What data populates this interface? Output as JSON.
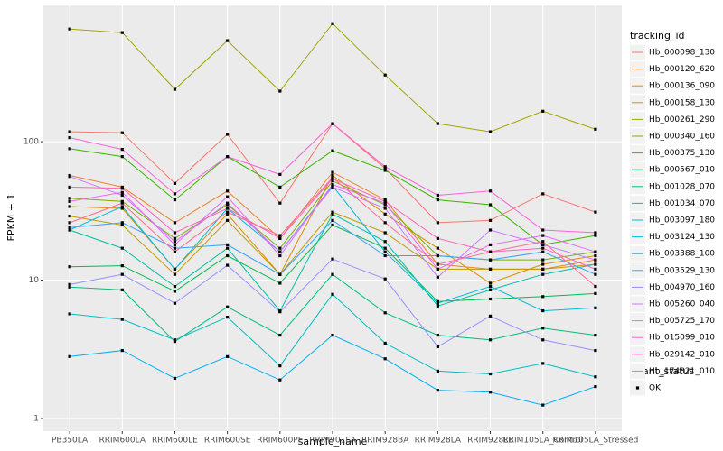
{
  "chart_data": {
    "type": "line",
    "x_label": "sample_name",
    "y_label": "FPKM + 1",
    "log_y": true,
    "grid": true,
    "legend_title": "tracking_id",
    "shape_legend": {
      "title": "quant_status",
      "labels": [
        "OK"
      ]
    },
    "point_color": "#000000",
    "panel_color": "#EBEBEB",
    "categories": [
      "PB350LA",
      "RRIM600LA",
      "RRIM600LE",
      "RRIM600SE",
      "RRIM600PE",
      "RRIM901LA",
      "RRIM928BA",
      "RRIM928LA",
      "RRIM928LE",
      "RRIM105LA_Control",
      "RRIM105LA_Stressed"
    ],
    "ylim": [
      0.81,
      980
    ],
    "yticks": [
      1,
      10,
      100
    ],
    "series": [
      {
        "name": "Hb_000098_130",
        "color": "#F8766D",
        "values": [
          118,
          116,
          50,
          113,
          36,
          135,
          64,
          26,
          27,
          42,
          31
        ]
      },
      {
        "name": "Hb_000120_620",
        "color": "#EA8331",
        "values": [
          57,
          47,
          26,
          44,
          20,
          60,
          38,
          13,
          12,
          12,
          14
        ]
      },
      {
        "name": "Hb_000136_090",
        "color": "#D89000",
        "values": [
          34,
          33,
          12,
          30,
          11,
          57,
          30,
          17,
          9.5,
          13,
          15
        ]
      },
      {
        "name": "Hb_000158_130",
        "color": "#C09B00",
        "values": [
          29,
          25,
          11,
          27,
          11,
          31,
          22,
          12,
          12,
          12,
          13
        ]
      },
      {
        "name": "Hb_000261_290",
        "color": "#A3A500",
        "values": [
          652,
          614,
          239,
          537,
          232,
          713,
          303,
          135,
          118,
          166,
          123
        ]
      },
      {
        "name": "Hb_000340_160",
        "color": "#7CAE00",
        "values": [
          39,
          37,
          20,
          35,
          17,
          52,
          35,
          15,
          14,
          14,
          16
        ]
      },
      {
        "name": "Hb_000375_130",
        "color": "#39B600",
        "values": [
          89,
          78,
          38,
          78,
          47,
          86,
          62,
          38,
          35,
          18,
          21
        ]
      },
      {
        "name": "Hb_000567_010",
        "color": "#00BB4E",
        "values": [
          12.5,
          12.7,
          8.3,
          15,
          9.5,
          25,
          17,
          7,
          7.3,
          7.6,
          8
        ]
      },
      {
        "name": "Hb_001028_070",
        "color": "#00BF7D",
        "values": [
          8.9,
          8.5,
          3.6,
          6.4,
          4,
          11,
          5.8,
          4,
          3.7,
          4.5,
          4
        ]
      },
      {
        "name": "Hb_001034_070",
        "color": "#00C1A3",
        "values": [
          23,
          17,
          9,
          17,
          6,
          30,
          19,
          6.5,
          8.5,
          11,
          13
        ]
      },
      {
        "name": "Hb_003097_180",
        "color": "#00BFC4",
        "values": [
          5.7,
          5.2,
          3.7,
          5.4,
          2.4,
          7.9,
          3.5,
          2.2,
          2.1,
          2.5,
          2
        ]
      },
      {
        "name": "Hb_003124_130",
        "color": "#00BAE0",
        "values": [
          23,
          34,
          12,
          33,
          16,
          48,
          16,
          6.8,
          9,
          6,
          6.3
        ]
      },
      {
        "name": "Hb_003388_100",
        "color": "#00B0F6",
        "values": [
          2.8,
          3.1,
          1.95,
          2.8,
          1.9,
          4,
          2.7,
          1.6,
          1.55,
          1.25,
          1.7
        ]
      },
      {
        "name": "Hb_003529_130",
        "color": "#35A2FF",
        "values": [
          24,
          26,
          17,
          18,
          11,
          27,
          15,
          15,
          14,
          16,
          11
        ]
      },
      {
        "name": "Hb_004970_160",
        "color": "#9590FF",
        "values": [
          9.3,
          11,
          6.8,
          12.8,
          5.9,
          14.2,
          10.2,
          3.3,
          5.5,
          3.7,
          3.1
        ]
      },
      {
        "name": "Hb_005260_040",
        "color": "#C77CFF",
        "values": [
          56,
          41,
          19,
          36,
          16,
          47,
          33,
          10.5,
          23,
          18,
          14
        ]
      },
      {
        "name": "Hb_005725_170",
        "color": "#E76BF3",
        "values": [
          37,
          43,
          18,
          40,
          15,
          49,
          36,
          12,
          18,
          21,
          16
        ]
      },
      {
        "name": "Hb_015099_010",
        "color": "#FA62DB",
        "values": [
          107,
          88,
          42,
          78,
          58,
          135,
          66,
          41,
          44,
          23,
          22
        ]
      },
      {
        "name": "Hb_029142_010",
        "color": "#FF62BC",
        "values": [
          47,
          46,
          22,
          33,
          20,
          54,
          37,
          20,
          16,
          17,
          12
        ]
      },
      {
        "name": "Hb_174821_010",
        "color": "#FF6C91",
        "values": [
          26,
          36,
          16,
          31,
          21,
          55,
          26,
          13,
          16,
          19,
          9
        ]
      }
    ]
  }
}
